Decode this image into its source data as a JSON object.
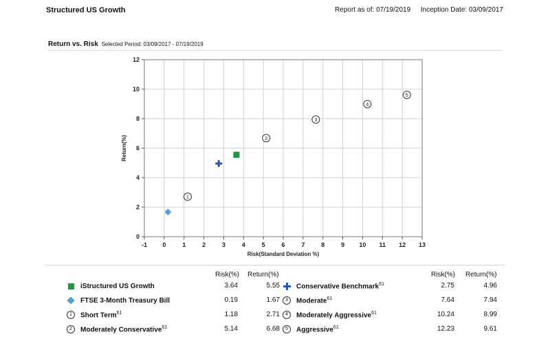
{
  "header": {
    "title": "Structured US Growth",
    "report_as_of": "Report as of: 07/19/2019",
    "inception_date": "Inception Date: 03/09/2017"
  },
  "section": {
    "title": "Return vs. Risk",
    "period": "Selected Period:  03/09/2017 - 07/19/2019"
  },
  "table_headers": {
    "risk": "Risk(%)",
    "return": "Return(%)"
  },
  "chart_data": {
    "type": "scatter",
    "xlabel": "Risk(Standard Deviation %)",
    "ylabel": "Return(%)",
    "xlim": [
      -1,
      13
    ],
    "ylim": [
      0,
      12
    ],
    "xticks": [
      -1,
      0,
      1,
      2,
      3,
      4,
      5,
      6,
      7,
      8,
      9,
      10,
      11,
      12,
      13
    ],
    "yticks": [
      0,
      2,
      4,
      6,
      8,
      10,
      12
    ],
    "grid": true,
    "points": [
      {
        "name": "iStructured US Growth",
        "sup": "",
        "marker": "square",
        "symbol": "",
        "color": "#1f9a3a",
        "x": 3.64,
        "y": 5.55,
        "risk": "3.64",
        "ret": "5.55"
      },
      {
        "name": "FTSE 3-Month Treasury Bill",
        "sup": "",
        "marker": "diamond",
        "symbol": "",
        "color": "#5aa0c8",
        "x": 0.19,
        "y": 1.67,
        "risk": "0.19",
        "ret": "1.67"
      },
      {
        "name": "Short Term",
        "sup": "61",
        "marker": "circle",
        "symbol": "1",
        "color": "#333333",
        "x": 1.18,
        "y": 2.71,
        "risk": "1.18",
        "ret": "2.71"
      },
      {
        "name": "Moderately Conservative",
        "sup": "61",
        "marker": "circle",
        "symbol": "2",
        "color": "#333333",
        "x": 5.14,
        "y": 6.68,
        "risk": "5.14",
        "ret": "6.68"
      },
      {
        "name": "Conservative Benchmark",
        "sup": "61",
        "marker": "plus",
        "symbol": "",
        "color": "#2a55b8",
        "x": 2.75,
        "y": 4.96,
        "risk": "2.75",
        "ret": "4.96"
      },
      {
        "name": "Moderate",
        "sup": "61",
        "marker": "circle",
        "symbol": "3",
        "color": "#333333",
        "x": 7.64,
        "y": 7.94,
        "risk": "7.64",
        "ret": "7.94"
      },
      {
        "name": "Moderately Aggressive",
        "sup": "61",
        "marker": "circle",
        "symbol": "4",
        "color": "#333333",
        "x": 10.24,
        "y": 8.99,
        "risk": "10.24",
        "ret": "8.99"
      },
      {
        "name": "Aggressive",
        "sup": "61",
        "marker": "circle",
        "symbol": "5",
        "color": "#333333",
        "x": 12.23,
        "y": 9.61,
        "risk": "12.23",
        "ret": "9.61"
      }
    ]
  }
}
